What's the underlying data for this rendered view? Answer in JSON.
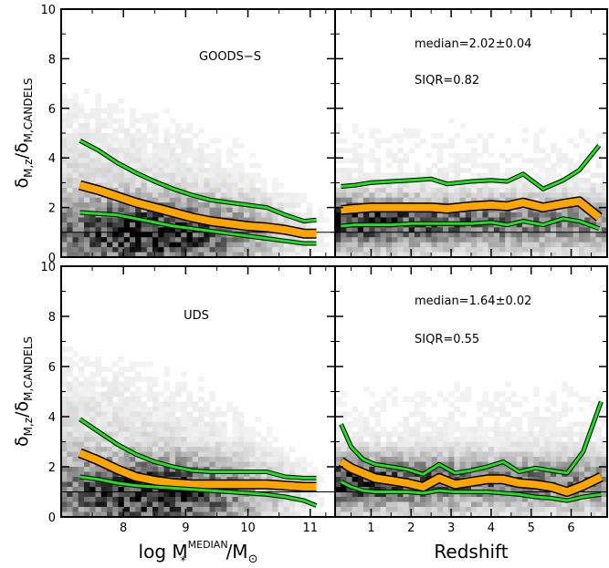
{
  "chart_data": [
    {
      "type": "line",
      "panel": "top-left",
      "annotation": "GOODS−S",
      "xlim": [
        7.0,
        11.4
      ],
      "ylim": [
        0,
        10
      ],
      "yticks": [
        "0",
        "2",
        "4",
        "6",
        "8",
        "10"
      ],
      "xticks": [],
      "ylabel_main": "δ",
      "ylabel_sub_num": "M,z",
      "ylabel_sub_den": "M,CANDELS",
      "reference_line": 1.0,
      "series": [
        {
          "role": "upper",
          "color": "#22dd22",
          "x": [
            7.3,
            7.6,
            7.9,
            8.2,
            8.5,
            8.8,
            9.1,
            9.4,
            9.7,
            10.0,
            10.3,
            10.6,
            10.9,
            11.1
          ],
          "y": [
            4.7,
            4.3,
            3.8,
            3.4,
            3.05,
            2.75,
            2.5,
            2.3,
            2.2,
            2.1,
            2.0,
            1.7,
            1.45,
            1.5
          ]
        },
        {
          "role": "median",
          "color": "#ffa500",
          "x": [
            7.3,
            7.6,
            7.9,
            8.2,
            8.5,
            8.8,
            9.1,
            9.4,
            9.7,
            10.0,
            10.3,
            10.6,
            10.9,
            11.1
          ],
          "y": [
            2.9,
            2.7,
            2.45,
            2.2,
            2.0,
            1.8,
            1.6,
            1.45,
            1.35,
            1.25,
            1.2,
            1.1,
            0.95,
            0.95
          ]
        },
        {
          "role": "lower",
          "color": "#22dd22",
          "x": [
            7.3,
            7.6,
            7.9,
            8.2,
            8.5,
            8.8,
            9.1,
            9.4,
            9.7,
            10.0,
            10.3,
            10.6,
            10.9,
            11.1
          ],
          "y": [
            1.8,
            1.75,
            1.7,
            1.55,
            1.4,
            1.25,
            1.15,
            1.05,
            0.95,
            0.85,
            0.75,
            0.65,
            0.55,
            0.55
          ]
        }
      ]
    },
    {
      "type": "line",
      "panel": "top-right",
      "annotation_1": "median=2.02±0.04",
      "annotation_2": "SIQR=0.82",
      "xlim": [
        0.1,
        6.9
      ],
      "ylim": [
        0,
        10
      ],
      "yticks": [],
      "xticks": [],
      "reference_line": 1.0,
      "series": [
        {
          "role": "upper",
          "color": "#22dd22",
          "x": [
            0.25,
            0.6,
            1.0,
            1.5,
            2.0,
            2.5,
            2.9,
            3.5,
            4.0,
            4.4,
            4.8,
            5.3,
            5.8,
            6.2,
            6.7
          ],
          "y": [
            2.85,
            2.9,
            3.0,
            3.05,
            3.1,
            3.15,
            2.95,
            3.05,
            3.1,
            3.05,
            3.35,
            2.75,
            3.1,
            3.5,
            4.5
          ]
        },
        {
          "role": "median",
          "color": "#ffa500",
          "x": [
            0.25,
            0.6,
            1.0,
            1.5,
            2.0,
            2.5,
            2.9,
            3.5,
            4.0,
            4.4,
            4.8,
            5.3,
            5.8,
            6.2,
            6.7
          ],
          "y": [
            1.9,
            1.95,
            2.0,
            2.0,
            2.0,
            2.0,
            1.95,
            2.05,
            2.1,
            2.05,
            2.2,
            2.0,
            2.15,
            2.25,
            1.6
          ]
        },
        {
          "role": "lower",
          "color": "#22dd22",
          "x": [
            0.25,
            0.6,
            1.0,
            1.5,
            2.0,
            2.5,
            2.9,
            3.5,
            4.0,
            4.4,
            4.8,
            5.3,
            5.8,
            6.2,
            6.7
          ],
          "y": [
            1.25,
            1.3,
            1.3,
            1.3,
            1.35,
            1.35,
            1.35,
            1.35,
            1.4,
            1.3,
            1.45,
            1.3,
            1.55,
            1.45,
            1.15
          ]
        }
      ]
    },
    {
      "type": "line",
      "panel": "bottom-left",
      "annotation": "UDS",
      "xlim": [
        7.0,
        11.4
      ],
      "ylim": [
        0,
        10
      ],
      "yticks": [
        "0",
        "2",
        "4",
        "6",
        "8",
        "10"
      ],
      "xticks": [
        "8",
        "9",
        "10",
        "11"
      ],
      "ylabel_main": "δ",
      "ylabel_sub_num": "M,z",
      "ylabel_sub_den": "M,CANDELS",
      "xlabel_main": "log M",
      "xlabel_sup": "MEDIAN",
      "xlabel_sub": "*",
      "xlabel_tail": "/M",
      "xlabel_tail_sub": "⊙",
      "reference_line": 1.0,
      "series": [
        {
          "role": "upper",
          "color": "#22dd22",
          "x": [
            7.3,
            7.6,
            7.9,
            8.2,
            8.5,
            8.8,
            9.1,
            9.4,
            9.7,
            10.0,
            10.3,
            10.6,
            10.9,
            11.1
          ],
          "y": [
            3.9,
            3.4,
            2.9,
            2.5,
            2.2,
            2.0,
            1.85,
            1.8,
            1.8,
            1.8,
            1.8,
            1.6,
            1.55,
            1.55
          ]
        },
        {
          "role": "median",
          "color": "#ffa500",
          "x": [
            7.3,
            7.6,
            7.9,
            8.2,
            8.5,
            8.8,
            9.1,
            9.4,
            9.7,
            10.0,
            10.3,
            10.6,
            10.9,
            11.1
          ],
          "y": [
            2.55,
            2.25,
            1.9,
            1.6,
            1.45,
            1.35,
            1.3,
            1.3,
            1.3,
            1.3,
            1.3,
            1.25,
            1.2,
            1.2
          ]
        },
        {
          "role": "lower",
          "color": "#22dd22",
          "x": [
            7.3,
            7.6,
            7.9,
            8.2,
            8.5,
            8.8,
            9.1,
            9.4,
            9.7,
            10.0,
            10.3,
            10.6,
            10.9,
            11.1
          ],
          "y": [
            1.6,
            1.5,
            1.35,
            1.25,
            1.2,
            1.15,
            1.1,
            1.05,
            1.0,
            0.95,
            0.9,
            0.8,
            0.65,
            0.45
          ]
        }
      ]
    },
    {
      "type": "line",
      "panel": "bottom-right",
      "annotation_1": "median=1.64±0.02",
      "annotation_2": "SIQR=0.55",
      "xlim": [
        0.1,
        6.9
      ],
      "ylim": [
        0,
        10
      ],
      "yticks": [],
      "xticks": [
        "1",
        "2",
        "3",
        "4",
        "5",
        "6"
      ],
      "xlabel": "Redshift",
      "reference_line": 1.0,
      "series": [
        {
          "role": "upper",
          "color": "#22dd22",
          "x": [
            0.25,
            0.5,
            0.8,
            1.1,
            1.5,
            1.9,
            2.3,
            2.7,
            3.1,
            3.5,
            3.9,
            4.3,
            4.7,
            5.1,
            5.5,
            5.9,
            6.3,
            6.75
          ],
          "y": [
            3.7,
            2.8,
            2.3,
            2.1,
            2.0,
            1.9,
            1.7,
            2.1,
            1.75,
            1.85,
            2.0,
            2.2,
            1.8,
            1.95,
            1.85,
            1.75,
            2.6,
            4.6
          ]
        },
        {
          "role": "median",
          "color": "#ffa500",
          "x": [
            0.25,
            0.5,
            0.8,
            1.1,
            1.5,
            1.9,
            2.3,
            2.7,
            3.1,
            3.5,
            3.9,
            4.3,
            4.7,
            5.1,
            5.5,
            5.9,
            6.3,
            6.75
          ],
          "y": [
            2.2,
            1.95,
            1.75,
            1.55,
            1.45,
            1.35,
            1.2,
            1.55,
            1.3,
            1.4,
            1.5,
            1.5,
            1.35,
            1.3,
            1.2,
            1.0,
            1.25,
            1.6
          ]
        },
        {
          "role": "lower",
          "color": "#22dd22",
          "x": [
            0.25,
            0.5,
            0.8,
            1.1,
            1.5,
            1.9,
            2.3,
            2.7,
            3.1,
            3.5,
            3.9,
            4.3,
            4.7,
            5.1,
            5.5,
            5.9,
            6.3,
            6.75
          ],
          "y": [
            1.4,
            1.2,
            1.05,
            1.0,
            1.0,
            1.0,
            0.95,
            1.05,
            1.0,
            1.0,
            1.0,
            0.95,
            0.9,
            0.8,
            0.75,
            0.65,
            0.8,
            0.9
          ]
        }
      ]
    }
  ]
}
